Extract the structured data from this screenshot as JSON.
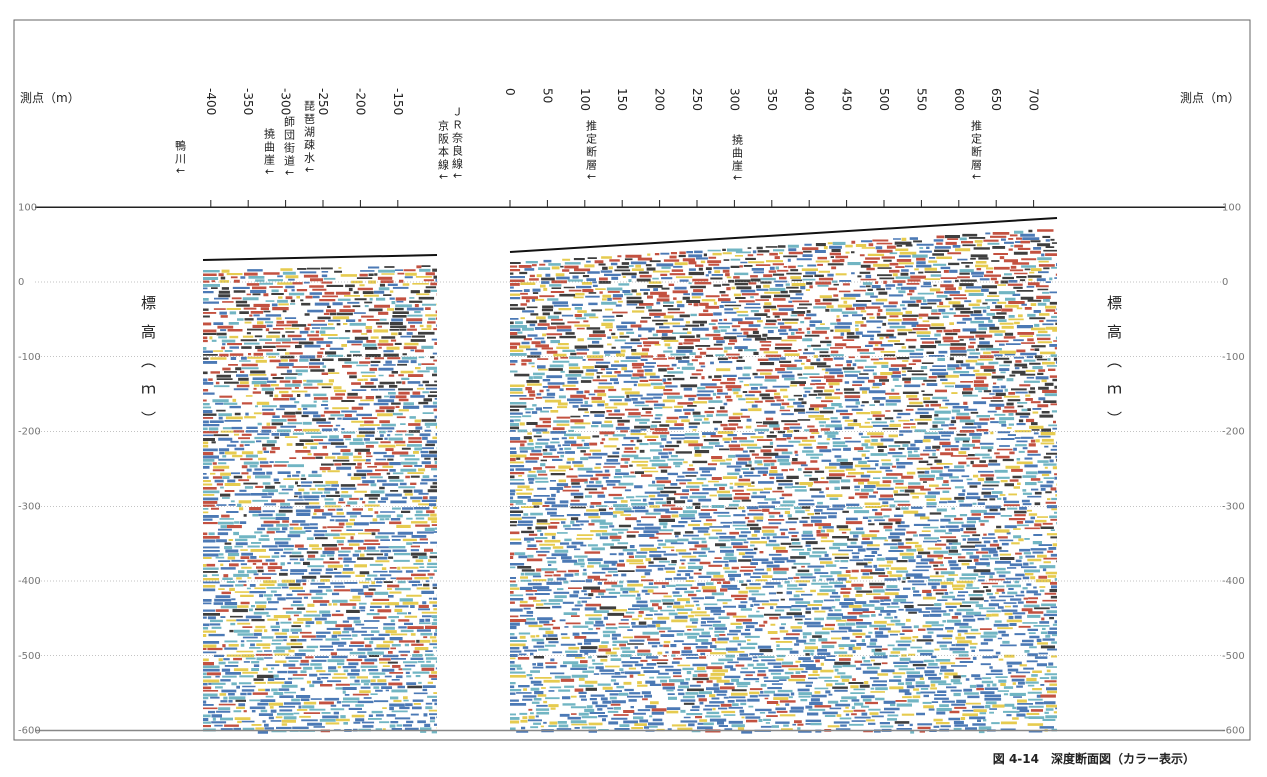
{
  "station_axis": {
    "label": "測点（m）",
    "ticks": [
      -400,
      -350,
      -300,
      -250,
      -200,
      -150,
      0,
      50,
      100,
      150,
      200,
      250,
      300,
      350,
      400,
      450,
      500,
      550,
      600,
      650,
      700
    ]
  },
  "elevation_axis": {
    "label": "標高（ｍ）",
    "ticks": [
      100,
      0,
      -100,
      -200,
      -300,
      -400,
      -500,
      -600
    ]
  },
  "annotations": [
    "鴨川↓",
    "撓曲崖↓",
    "師団街道↓",
    "琵琶湖疎水↓",
    "京阪本線↓",
    "ＪＲ奈良線↓",
    "推定断層↓",
    "撓曲崖↓",
    "推定断層↓"
  ],
  "caption": "図 4-14　深度断面図（カラー表示）"
}
